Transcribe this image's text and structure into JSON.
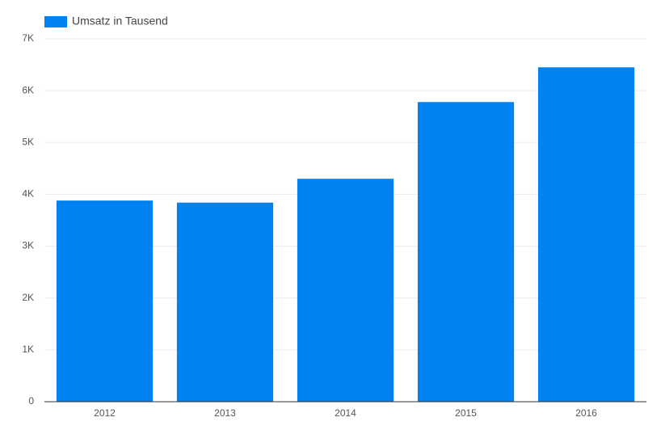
{
  "chart_data": {
    "type": "bar",
    "categories": [
      "2012",
      "2013",
      "2014",
      "2015",
      "2016"
    ],
    "series": [
      {
        "name": "Umsatz in Tausend",
        "color": "#0082f0",
        "values": [
          3880,
          3840,
          4300,
          5780,
          6450
        ]
      }
    ],
    "ylim": [
      0,
      7000
    ],
    "yticks": [
      0,
      {
        "value": 1000,
        "label": "1K"
      },
      {
        "value": 2000,
        "label": "2K"
      },
      {
        "value": 3000,
        "label": "3K"
      },
      {
        "value": 4000,
        "label": "4K"
      },
      {
        "value": 5000,
        "label": "5K"
      },
      {
        "value": 6000,
        "label": "6K"
      },
      {
        "value": 7000,
        "label": "7K"
      }
    ],
    "grid": true,
    "legend": "top-left"
  }
}
